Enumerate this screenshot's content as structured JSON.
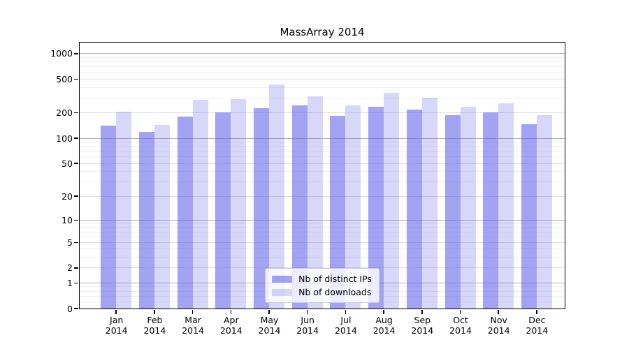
{
  "chart_data": {
    "type": "bar",
    "title": "MassArray 2014",
    "categories": [
      "Jan",
      "Feb",
      "Mar",
      "Apr",
      "May",
      "Jun",
      "Jul",
      "Aug",
      "Sep",
      "Oct",
      "Nov",
      "Dec"
    ],
    "x_tick_second_line": "2014",
    "series": [
      {
        "name": "Nb of distinct IPs",
        "color": "rgba(88,88,235,0.55)",
        "values": [
          140,
          118,
          180,
          202,
          226,
          245,
          186,
          236,
          217,
          188,
          201,
          148
        ]
      },
      {
        "name": "Nb of downloads",
        "color": "rgba(88,88,235,0.24)",
        "values": [
          205,
          143,
          285,
          291,
          432,
          313,
          247,
          344,
          304,
          236,
          260,
          189
        ]
      }
    ],
    "y_axis": {
      "scale": "log1p",
      "lim": [
        0,
        1350
      ],
      "tick_labels": [
        0,
        1,
        2,
        5,
        10,
        20,
        50,
        100,
        200,
        500,
        1000
      ],
      "major_gridlines": [
        1,
        10,
        100,
        1000
      ],
      "mid_gridlines": [
        2,
        5,
        20,
        50,
        200,
        500
      ],
      "minor_gridlines": [
        0.2,
        0.4,
        0.6,
        0.8,
        3,
        4,
        6,
        7,
        8,
        9,
        30,
        40,
        60,
        70,
        80,
        90,
        300,
        400,
        600,
        700,
        800,
        900
      ]
    },
    "legend": {
      "position": "lower center"
    },
    "grid_on": true,
    "colors": {
      "bars_base": "#5858eb",
      "bar_distinct_ips_on_white": "#a4a4f3",
      "bar_downloads_on_white": "#d8d8f9",
      "major_grid": "#b0b0b0",
      "mid_grid": "#dfdfdf",
      "minor_grid": "#efefef"
    }
  }
}
